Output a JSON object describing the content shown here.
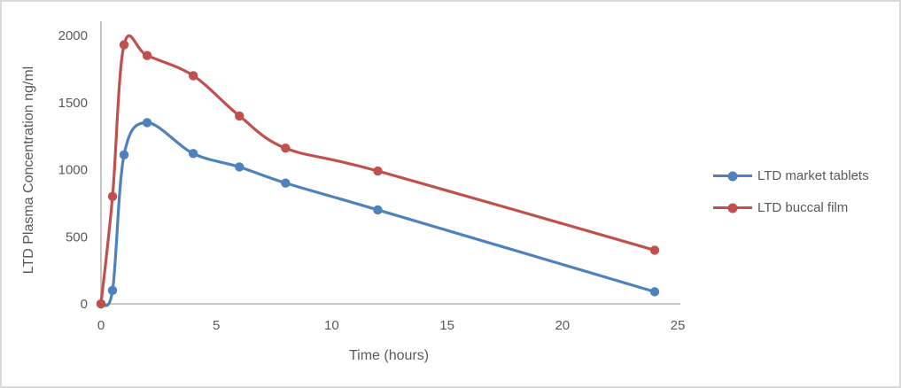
{
  "window": {
    "background_color": "#ffffff",
    "border_color": "#d9d9d9"
  },
  "chart_data": {
    "type": "line",
    "title": "",
    "xlabel": "Time (hours)",
    "ylabel": "LTD Plasma Concentration ng/ml",
    "x": [
      0,
      0.5,
      1,
      2,
      4,
      6,
      8,
      12,
      24
    ],
    "series": [
      {
        "name": "LTD market tablets",
        "color": "#4F81BD",
        "values": [
          0,
          100,
          1110,
          1350,
          1120,
          1020,
          900,
          700,
          90
        ]
      },
      {
        "name": "LTD buccal film",
        "color": "#C0504D",
        "values": [
          0,
          800,
          1930,
          1850,
          1700,
          1400,
          1160,
          990,
          400
        ]
      }
    ],
    "xlim": [
      0,
      25
    ],
    "ylim": [
      0,
      2000
    ],
    "x_ticks": [
      0,
      5,
      10,
      15,
      20,
      25
    ],
    "y_ticks": [
      0,
      500,
      1000,
      1500,
      2000
    ],
    "grid": false,
    "legend_position": "right",
    "line_smoothing": true,
    "marker": "circle",
    "axis_color": "#BFBFBF",
    "tick_text_color": "#595959"
  }
}
